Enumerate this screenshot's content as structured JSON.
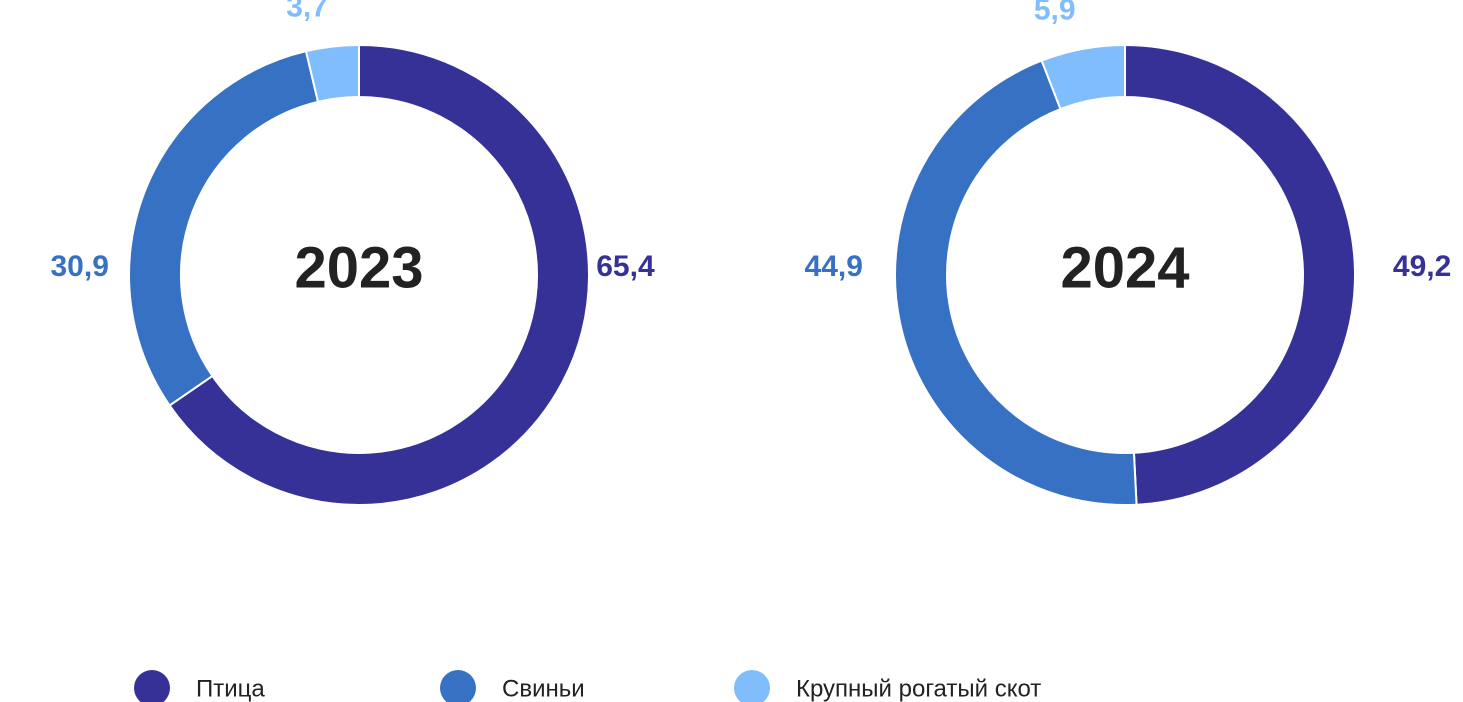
{
  "chart_data": [
    {
      "type": "pie",
      "title": "2023",
      "categories": [
        "Птица",
        "Свиньи",
        "Крупный рогатый скот"
      ],
      "values": [
        65.4,
        30.9,
        3.7
      ],
      "value_labels": [
        "65,4",
        "30,9",
        "3,7"
      ],
      "colors": [
        "#353197",
        "#3771c3",
        "#80bdfc"
      ],
      "legend": "bottom"
    },
    {
      "type": "pie",
      "title": "2024",
      "categories": [
        "Птица",
        "Свиньи",
        "Крупный рогатый скот"
      ],
      "values": [
        49.2,
        44.9,
        5.9
      ],
      "value_labels": [
        "49,2",
        "44,9",
        "5,9"
      ],
      "colors": [
        "#353197",
        "#3771c3",
        "#80bdfc"
      ],
      "legend": "bottom"
    }
  ]
}
